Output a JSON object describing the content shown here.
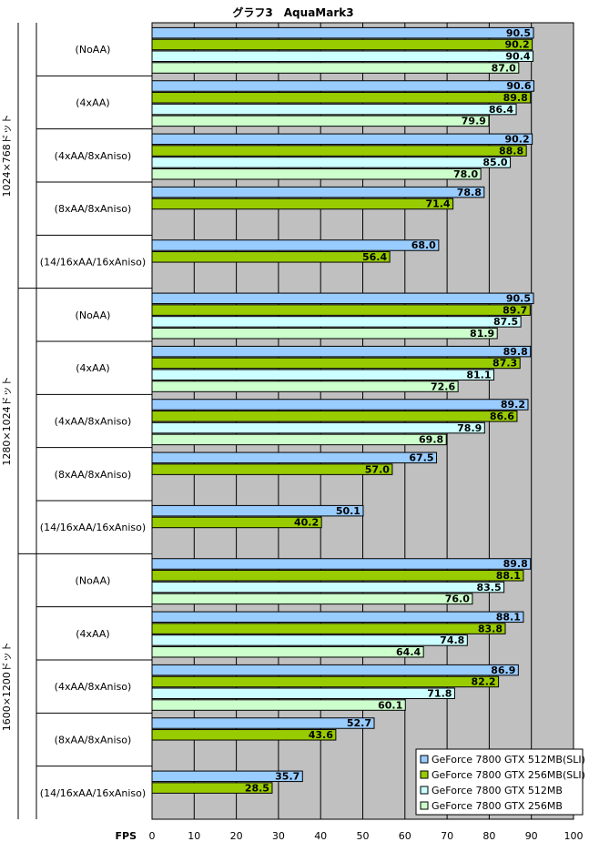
{
  "chart_data": {
    "type": "bar",
    "orientation": "horizontal",
    "title": "グラフ3　AquaMark3",
    "xlabel": "FPS",
    "xlim": [
      0,
      100
    ],
    "xticks": [
      0,
      10,
      20,
      30,
      40,
      50,
      60,
      70,
      80,
      90,
      100
    ],
    "grid": true,
    "legend_position": "bottom-right",
    "series": [
      {
        "name": "GeForce 7800 GTX 512MB(SLI)",
        "color": "#99ccff"
      },
      {
        "name": "GeForce 7800 GTX 256MB(SLI)",
        "color": "#99cc00"
      },
      {
        "name": "GeForce 7800 GTX 512MB",
        "color": "#ccffff"
      },
      {
        "name": "GeForce 7800 GTX 256MB",
        "color": "#ccffcc"
      }
    ],
    "groups": [
      {
        "label": "1024×768ドット",
        "categories": [
          {
            "label": "(NoAA)",
            "values": [
              90.5,
              90.2,
              90.4,
              87.0
            ]
          },
          {
            "label": "(4xAA)",
            "values": [
              90.6,
              89.8,
              86.4,
              79.9
            ]
          },
          {
            "label": "(4xAA/8xAniso)",
            "values": [
              90.2,
              88.8,
              85.0,
              78.0
            ]
          },
          {
            "label": "(8xAA/8xAniso)",
            "values": [
              78.8,
              71.4,
              null,
              null
            ]
          },
          {
            "label": "(14/16xAA/16xAniso)",
            "values": [
              68.0,
              56.4,
              null,
              null
            ]
          }
        ]
      },
      {
        "label": "1280×1024ドット",
        "categories": [
          {
            "label": "(NoAA)",
            "values": [
              90.5,
              89.7,
              87.5,
              81.9
            ]
          },
          {
            "label": "(4xAA)",
            "values": [
              89.8,
              87.3,
              81.1,
              72.6
            ]
          },
          {
            "label": "(4xAA/8xAniso)",
            "values": [
              89.2,
              86.6,
              78.9,
              69.8
            ]
          },
          {
            "label": "(8xAA/8xAniso)",
            "values": [
              67.5,
              57.0,
              null,
              null
            ]
          },
          {
            "label": "(14/16xAA/16xAniso)",
            "values": [
              50.1,
              40.2,
              null,
              null
            ]
          }
        ]
      },
      {
        "label": "1600×1200ドット",
        "categories": [
          {
            "label": "(NoAA)",
            "values": [
              89.8,
              88.1,
              83.5,
              76.0
            ]
          },
          {
            "label": "(4xAA)",
            "values": [
              88.1,
              83.8,
              74.8,
              64.4
            ]
          },
          {
            "label": "(4xAA/8xAniso)",
            "values": [
              86.9,
              82.2,
              71.8,
              60.1
            ]
          },
          {
            "label": "(8xAA/8xAniso)",
            "values": [
              52.7,
              43.6,
              null,
              null
            ]
          },
          {
            "label": "(14/16xAA/16xAniso)",
            "values": [
              35.7,
              28.5,
              null,
              null
            ]
          }
        ]
      }
    ]
  }
}
